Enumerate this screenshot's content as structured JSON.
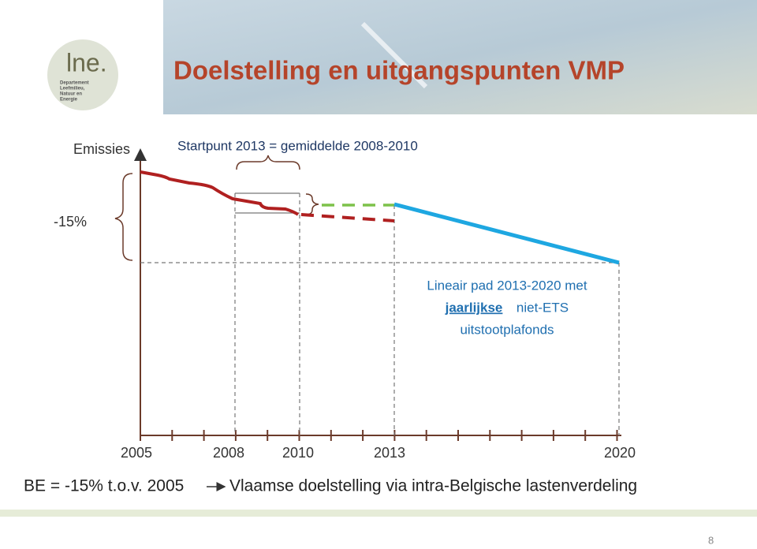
{
  "header": {
    "title": "Doelstelling en uitgangspunten VMP",
    "logo_text": "lne.",
    "logo_lines": [
      "Departement",
      "Leefmilieu,",
      "Natuur en",
      "Energie"
    ]
  },
  "diagram": {
    "y_label": "Emissies",
    "startpoint": "Startpunt 2013 = gemiddelde 2008-2010",
    "reduction": "-15%",
    "annotation": {
      "line1": "Lineair pad 2013-2020 met",
      "underlined": "jaarlijkse",
      "rest": "niet-ETS",
      "line3": "uitstootplafonds"
    },
    "x_labels": [
      "2005",
      "2008",
      "2010",
      "2013",
      "2020"
    ]
  },
  "footer": {
    "left": "BE = -15% t.o.v. 2005",
    "right": "Vlaamse doelstelling via intra-Belgische lastenverdeling"
  },
  "page_number": "8"
}
